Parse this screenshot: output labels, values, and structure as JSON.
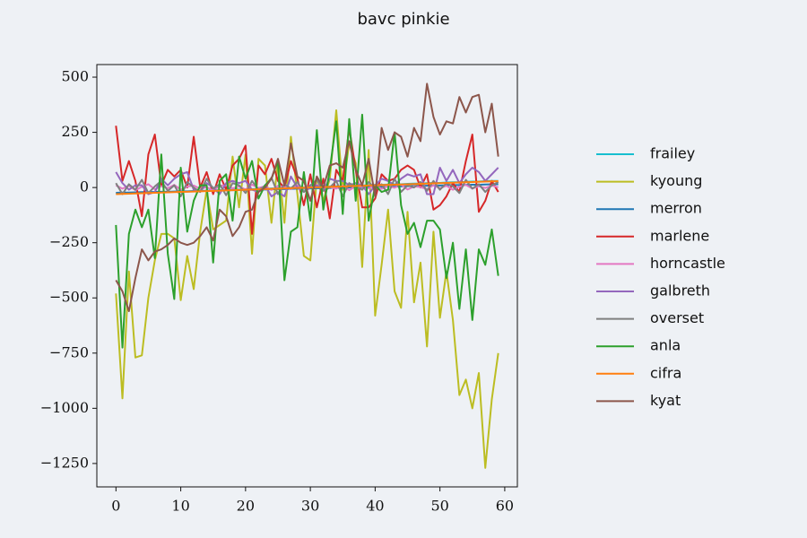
{
  "chart_data": {
    "type": "line",
    "title": "bavc pinkie",
    "x": [
      0,
      1,
      2,
      3,
      4,
      5,
      6,
      7,
      8,
      9,
      10,
      11,
      12,
      13,
      14,
      15,
      16,
      17,
      18,
      19,
      20,
      21,
      22,
      23,
      24,
      25,
      26,
      27,
      28,
      29,
      30,
      31,
      32,
      33,
      34,
      35,
      36,
      37,
      38,
      39,
      40,
      41,
      42,
      43,
      44,
      45,
      46,
      47,
      48,
      49,
      50,
      51,
      52,
      53,
      54,
      55,
      56,
      57,
      58,
      59
    ],
    "xlim": [
      -2.95,
      61.95
    ],
    "xticks": [
      0,
      10,
      20,
      30,
      40,
      50,
      60
    ],
    "ylim": [
      -1356,
      557
    ],
    "yticks": [
      {
        "value": -1250,
        "label": "−1250"
      },
      {
        "value": -1000,
        "label": "−1000"
      },
      {
        "value": -750,
        "label": "−750"
      },
      {
        "value": -500,
        "label": "−500"
      },
      {
        "value": -250,
        "label": "−250"
      },
      0,
      250,
      500
    ],
    "grid": false,
    "legend": "outside right",
    "series": [
      {
        "name": "frailey",
        "color": "#17becf",
        "values": [
          -27,
          -26,
          -27,
          -25,
          -24,
          -24,
          -22,
          -21,
          -21,
          -19,
          -18,
          -18,
          -16,
          -15,
          -15,
          -13,
          -12,
          -12,
          -10,
          -9,
          -9,
          -7,
          -6,
          -6,
          -4,
          -3,
          -3,
          -1,
          0,
          0,
          2,
          3,
          3,
          5,
          6,
          6,
          8,
          9,
          9,
          11,
          12,
          12,
          14,
          15,
          15,
          17,
          18,
          18,
          20,
          21,
          21,
          23,
          24,
          24,
          26,
          27,
          27,
          29,
          30,
          30
        ]
      },
      {
        "name": "kyoung",
        "color": "#bcbd22",
        "values": [
          -480,
          -955,
          -380,
          -770,
          -760,
          -500,
          -330,
          -210,
          -210,
          -230,
          -510,
          -310,
          -460,
          -200,
          -10,
          -190,
          -170,
          -150,
          140,
          -90,
          150,
          -300,
          130,
          100,
          -160,
          120,
          -160,
          230,
          -30,
          -310,
          -330,
          50,
          -60,
          40,
          350,
          -10,
          200,
          110,
          -360,
          170,
          -580,
          -350,
          -100,
          -470,
          -545,
          -110,
          -520,
          -340,
          -720,
          -200,
          -590,
          -380,
          -600,
          -940,
          -870,
          -1000,
          -840,
          -1270,
          -960,
          -750
        ]
      },
      {
        "name": "merron",
        "color": "#1f77b4",
        "values": [
          -24,
          -23,
          -23,
          -22,
          -21,
          -21,
          -20,
          -19,
          -19,
          -18,
          -17,
          -17,
          -16,
          -15,
          -15,
          -14,
          -13,
          -13,
          -12,
          -11,
          -11,
          -10,
          -9,
          -9,
          -8,
          -7,
          -7,
          -6,
          -5,
          -5,
          -4,
          -3,
          -3,
          -2,
          -1,
          -1,
          0,
          1,
          1,
          2,
          3,
          3,
          4,
          5,
          5,
          6,
          7,
          7,
          8,
          9,
          9,
          10,
          11,
          11,
          12,
          13,
          13,
          14,
          15,
          15
        ]
      },
      {
        "name": "marlene",
        "color": "#d62728",
        "values": [
          280,
          30,
          120,
          30,
          -130,
          150,
          240,
          10,
          80,
          50,
          80,
          0,
          230,
          0,
          70,
          -30,
          60,
          -10,
          100,
          130,
          190,
          -210,
          100,
          60,
          130,
          30,
          0,
          120,
          40,
          -80,
          60,
          -90,
          40,
          -140,
          80,
          30,
          270,
          80,
          -90,
          -90,
          -50,
          60,
          30,
          40,
          80,
          100,
          80,
          0,
          60,
          -100,
          -80,
          -40,
          20,
          -20,
          120,
          240,
          -110,
          -60,
          30,
          -20
        ]
      },
      {
        "name": "horncastle",
        "color": "#e377c2",
        "values": [
          10,
          -5,
          8,
          -12,
          3,
          15,
          -8,
          6,
          -3,
          12,
          -10,
          4,
          9,
          -6,
          2,
          -14,
          7,
          11,
          -4,
          5,
          -9,
          13,
          -2,
          6,
          -11,
          8,
          1,
          -7,
          10,
          -3,
          4,
          12,
          -8,
          2,
          -5,
          9,
          -12,
          6,
          3,
          -4,
          11,
          -6,
          7,
          -1,
          13,
          -9,
          5,
          2,
          -7,
          10,
          -3,
          8,
          -10,
          4,
          12,
          -5,
          6,
          -2,
          9,
          1
        ]
      },
      {
        "name": "galbreth",
        "color": "#9467bd",
        "values": [
          70,
          20,
          -10,
          10,
          10,
          -30,
          -20,
          40,
          10,
          40,
          60,
          70,
          -10,
          -20,
          20,
          0,
          -30,
          20,
          30,
          20,
          30,
          -10,
          -20,
          10,
          -40,
          -20,
          -40,
          50,
          0,
          -20,
          0,
          10,
          -10,
          40,
          30,
          30,
          10,
          20,
          10,
          -30,
          10,
          40,
          30,
          10,
          40,
          60,
          50,
          60,
          -30,
          -30,
          90,
          30,
          80,
          20,
          60,
          90,
          70,
          30,
          60,
          90
        ]
      },
      {
        "name": "overset",
        "color": "#7f7f7f",
        "values": [
          20,
          -30,
          15,
          -10,
          35,
          -25,
          5,
          30,
          -15,
          10,
          -40,
          25,
          0,
          -20,
          40,
          -5,
          15,
          -35,
          20,
          10,
          -25,
          30,
          -10,
          5,
          45,
          -30,
          15,
          -5,
          25,
          -20,
          10,
          35,
          -15,
          0,
          30,
          -40,
          20,
          5,
          -10,
          25,
          -5,
          15,
          -30,
          40,
          -20,
          10,
          0,
          25,
          -15,
          30,
          -10,
          20,
          5,
          -25,
          35,
          -5,
          15,
          -20,
          10,
          25
        ]
      },
      {
        "name": "anla",
        "color": "#2ca02c",
        "values": [
          -170,
          -725,
          -210,
          -100,
          -180,
          -100,
          -320,
          150,
          -300,
          -505,
          90,
          -200,
          -60,
          10,
          10,
          -340,
          30,
          60,
          -150,
          140,
          40,
          120,
          -50,
          10,
          40,
          120,
          -420,
          -200,
          -180,
          70,
          -150,
          260,
          -100,
          80,
          300,
          -120,
          310,
          -60,
          330,
          -150,
          10,
          -20,
          -10,
          250,
          -80,
          -210,
          -160,
          -270,
          -150,
          -150,
          -190,
          -410,
          -250,
          -550,
          -280,
          -600,
          -280,
          -350,
          -190,
          -400
        ]
      },
      {
        "name": "cifra",
        "color": "#ff7f0e",
        "values": [
          -30,
          -29,
          -28,
          -27,
          -26,
          -25,
          -24,
          -23,
          -22,
          -21,
          -20,
          -19,
          -18,
          -17,
          -16,
          -15,
          -14,
          -13,
          -12,
          -11,
          -10,
          -9,
          -8,
          -7,
          -6,
          -5,
          -4,
          -3,
          -2,
          -1,
          0,
          1,
          2,
          3,
          4,
          5,
          6,
          7,
          8,
          9,
          10,
          11,
          12,
          13,
          14,
          15,
          16,
          17,
          18,
          19,
          20,
          21,
          22,
          23,
          24,
          25,
          26,
          27,
          28,
          29
        ]
      },
      {
        "name": "kyat",
        "color": "#8c564b",
        "values": [
          -420,
          -470,
          -560,
          -410,
          -280,
          -330,
          -290,
          -280,
          -260,
          -230,
          -250,
          -260,
          -250,
          -220,
          -180,
          -240,
          -100,
          -130,
          -220,
          -180,
          -110,
          -100,
          -20,
          0,
          40,
          130,
          10,
          200,
          50,
          30,
          -60,
          50,
          0,
          100,
          110,
          90,
          210,
          80,
          10,
          130,
          -40,
          270,
          170,
          250,
          230,
          140,
          270,
          210,
          470,
          320,
          240,
          300,
          290,
          410,
          340,
          410,
          420,
          250,
          380,
          140
        ]
      }
    ]
  }
}
